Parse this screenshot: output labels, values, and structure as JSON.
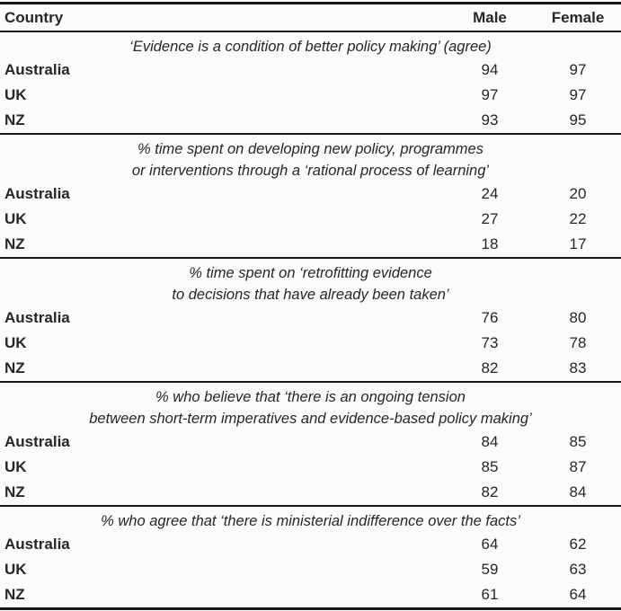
{
  "colors": {
    "text": "#26262b",
    "line": "#161616",
    "background": "#fbfbfb"
  },
  "table": {
    "columns": [
      "Country",
      "Male",
      "Female"
    ],
    "sections": [
      {
        "title_lines": [
          "‘Evidence is a condition of better policy making’ (agree)"
        ],
        "rows": [
          {
            "country": "Australia",
            "male": "94",
            "female": "97"
          },
          {
            "country": "UK",
            "male": "97",
            "female": "97"
          },
          {
            "country": "NZ",
            "male": "93",
            "female": "95"
          }
        ]
      },
      {
        "title_lines": [
          "% time spent on developing new policy, programmes",
          "or interventions through a ‘rational process of learning’"
        ],
        "rows": [
          {
            "country": "Australia",
            "male": "24",
            "female": "20"
          },
          {
            "country": "UK",
            "male": "27",
            "female": "22"
          },
          {
            "country": "NZ",
            "male": "18",
            "female": "17"
          }
        ]
      },
      {
        "title_lines": [
          "% time spent on ‘retrofitting evidence",
          "to decisions that have already been taken’"
        ],
        "rows": [
          {
            "country": "Australia",
            "male": "76",
            "female": "80"
          },
          {
            "country": "UK",
            "male": "73",
            "female": "78"
          },
          {
            "country": "NZ",
            "male": "82",
            "female": "83"
          }
        ]
      },
      {
        "title_lines": [
          "% who believe that ‘there is an ongoing tension",
          "between short-term imperatives and evidence-based policy making’"
        ],
        "rows": [
          {
            "country": "Australia",
            "male": "84",
            "female": "85"
          },
          {
            "country": "UK",
            "male": "85",
            "female": "87"
          },
          {
            "country": "NZ",
            "male": "82",
            "female": "84"
          }
        ]
      },
      {
        "title_lines": [
          "% who agree that ‘there is ministerial indifference over the facts’"
        ],
        "rows": [
          {
            "country": "Australia",
            "male": "64",
            "female": "62"
          },
          {
            "country": "UK",
            "male": "59",
            "female": "63"
          },
          {
            "country": "NZ",
            "male": "61",
            "female": "64"
          }
        ]
      }
    ]
  }
}
